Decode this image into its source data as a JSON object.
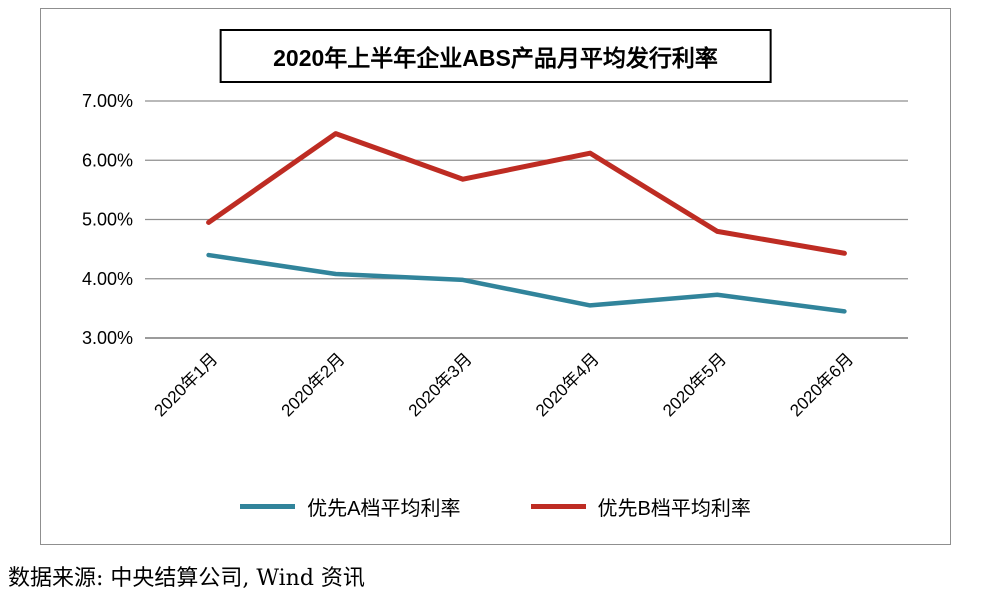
{
  "chart_data": {
    "type": "line",
    "title": "2020年上半年企业ABS产品月平均发行利率",
    "categories": [
      "2020年1月",
      "2020年2月",
      "2020年3月",
      "2020年4月",
      "2020年5月",
      "2020年6月"
    ],
    "series": [
      {
        "name": "优先A档平均利率",
        "color": "#31849B",
        "values": [
          4.4,
          4.08,
          3.98,
          3.55,
          3.73,
          3.45
        ]
      },
      {
        "name": "优先B档平均利率",
        "color": "#BE2C23",
        "values": [
          4.95,
          6.45,
          5.68,
          6.12,
          4.8,
          4.43
        ]
      }
    ],
    "xlabel": "",
    "ylabel": "",
    "ylim": [
      3,
      7
    ],
    "ytick_step": 1,
    "ytick_labels": [
      "3.00%",
      "4.00%",
      "5.00%",
      "6.00%",
      "7.00%"
    ],
    "grid": true,
    "legend_position": "bottom",
    "source_note": "数据来源: 中央结算公司, Wind 资讯"
  }
}
